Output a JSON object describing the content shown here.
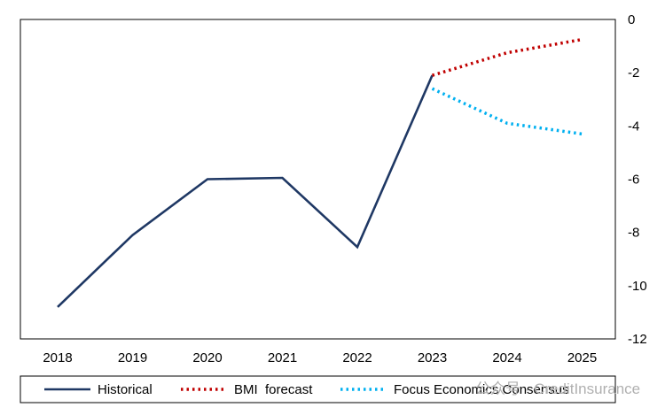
{
  "chart_data": {
    "type": "line",
    "x": [
      "2018",
      "2019",
      "2020",
      "2021",
      "2022",
      "2023",
      "2024",
      "2025"
    ],
    "series": [
      {
        "name": "Historical",
        "style": "solid",
        "color": "#1f3864",
        "points": [
          [
            "2018",
            -10.8
          ],
          [
            "2019",
            -8.1
          ],
          [
            "2020",
            -6.0
          ],
          [
            "2021",
            -5.95
          ],
          [
            "2022",
            -8.55
          ],
          [
            "2023",
            -2.1
          ]
        ]
      },
      {
        "name": "BMI  forecast",
        "style": "dotted",
        "color": "#c00000",
        "points": [
          [
            "2023",
            -2.1
          ],
          [
            "2024",
            -1.25
          ],
          [
            "2025",
            -0.75
          ]
        ]
      },
      {
        "name": "Focus Economics Consensus",
        "style": "dotted",
        "color": "#00b0f0",
        "points": [
          [
            "2023",
            -2.6
          ],
          [
            "2024",
            -3.9
          ],
          [
            "2025",
            -4.3
          ]
        ]
      }
    ],
    "ylim": [
      -12,
      0
    ],
    "yticks": [
      "0",
      "-2",
      "-4",
      "-6",
      "-8",
      "-10",
      "-12"
    ],
    "y_axis_position": "right",
    "grid": false,
    "legend_position": "bottom"
  },
  "watermark": "公众号 · CreditInsurance"
}
